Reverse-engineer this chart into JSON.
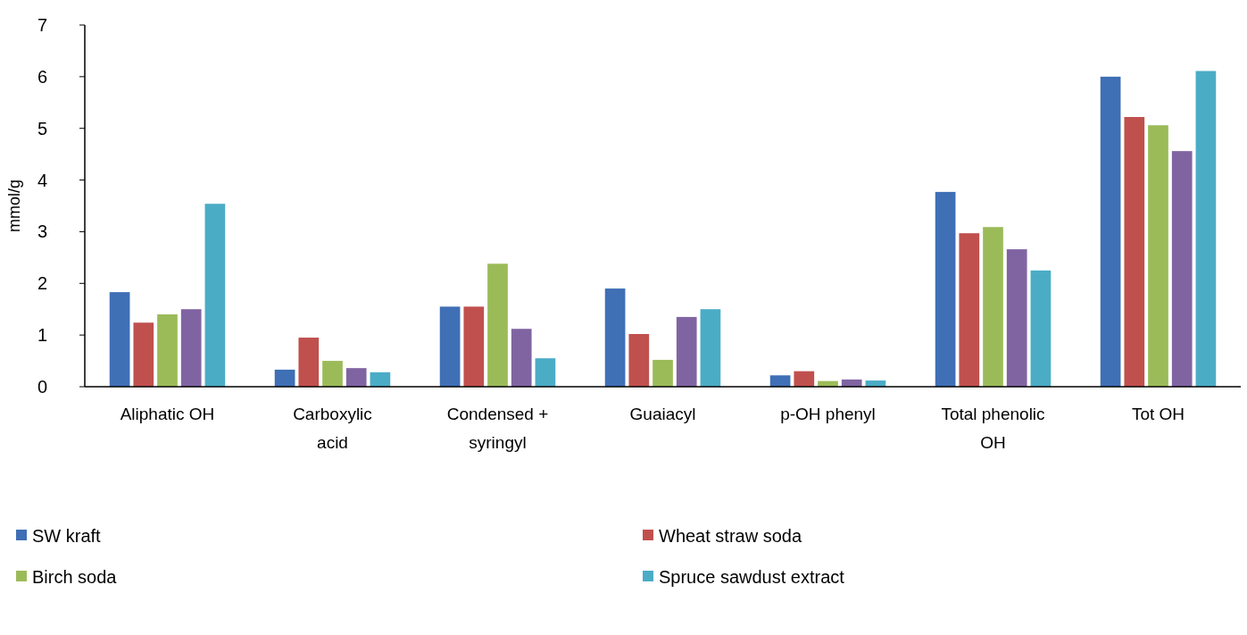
{
  "chart_data": {
    "type": "bar",
    "ylabel": "mmol/g",
    "categories": [
      "Aliphatic OH",
      "Carboxylic acid",
      "Condensed + syringyl",
      "Guaiacyl",
      "p-OH phenyl",
      "Total phenolic OH",
      "Tot OH"
    ],
    "series": [
      {
        "name": "SW kraft",
        "color": "#3f6fb5",
        "values": [
          1.83,
          0.33,
          1.55,
          1.9,
          0.22,
          3.77,
          6.0
        ]
      },
      {
        "name": "Wheat straw soda",
        "color": "#c0504d",
        "values": [
          1.24,
          0.95,
          1.55,
          1.02,
          0.3,
          2.97,
          5.22
        ]
      },
      {
        "name": "Birch soda",
        "color": "#9bbb59",
        "values": [
          1.4,
          0.5,
          2.38,
          0.52,
          0.11,
          3.09,
          5.06
        ]
      },
      {
        "color": "#8064a2",
        "values": [
          1.5,
          0.36,
          1.12,
          1.35,
          0.14,
          2.66,
          4.56
        ]
      },
      {
        "name": "Spruce sawdust extract",
        "color": "#4bacc6",
        "values": [
          3.54,
          0.28,
          0.55,
          1.5,
          0.12,
          2.25,
          6.11
        ]
      }
    ],
    "ylim": [
      0,
      7
    ],
    "yticks": [
      0,
      1,
      2,
      3,
      4,
      5,
      6,
      7
    ],
    "legend": "bottom"
  }
}
